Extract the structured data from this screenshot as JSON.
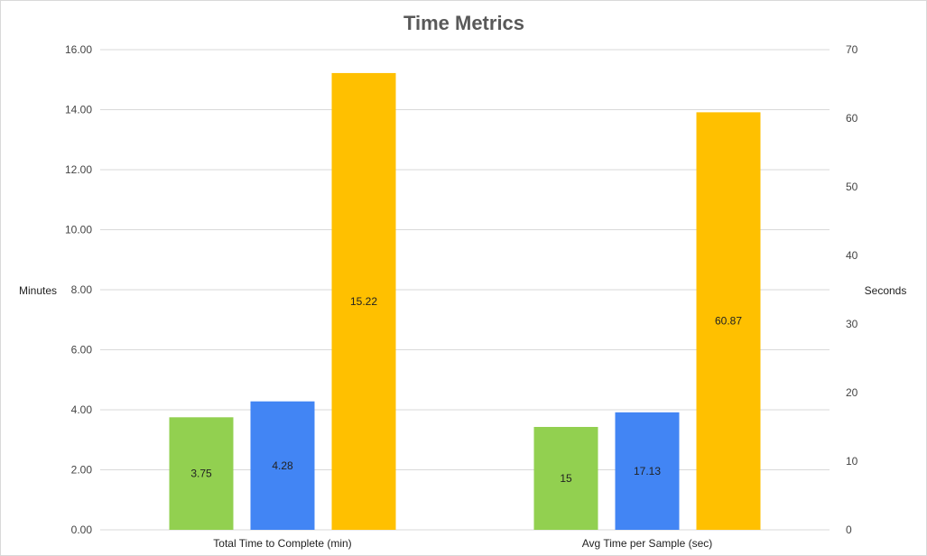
{
  "chart_data": {
    "type": "bar",
    "title": "Time Metrics",
    "categories": [
      "Total Time to Complete (min)",
      "Avg Time per Sample (sec)"
    ],
    "series": [
      {
        "color": "#92d050",
        "values": [
          3.75,
          15
        ]
      },
      {
        "color": "#4285f4",
        "values": [
          4.28,
          17.13
        ]
      },
      {
        "color": "#ffc000",
        "values": [
          15.22,
          60.87
        ]
      }
    ],
    "value_labels": [
      [
        "3.75",
        "15"
      ],
      [
        "4.28",
        "17.13"
      ],
      [
        "15.22",
        "60.87"
      ]
    ],
    "category_axis": [
      "left",
      "right"
    ],
    "y_left": {
      "label": "Minutes",
      "ylim": [
        0,
        16
      ],
      "ticks": [
        "0.00",
        "2.00",
        "4.00",
        "6.00",
        "8.00",
        "10.00",
        "12.00",
        "14.00",
        "16.00"
      ]
    },
    "y_right": {
      "label": "Seconds",
      "ylim": [
        0,
        70
      ],
      "ticks": [
        "0",
        "10",
        "20",
        "30",
        "40",
        "50",
        "60",
        "70"
      ]
    },
    "grid": true,
    "legend": "none"
  }
}
